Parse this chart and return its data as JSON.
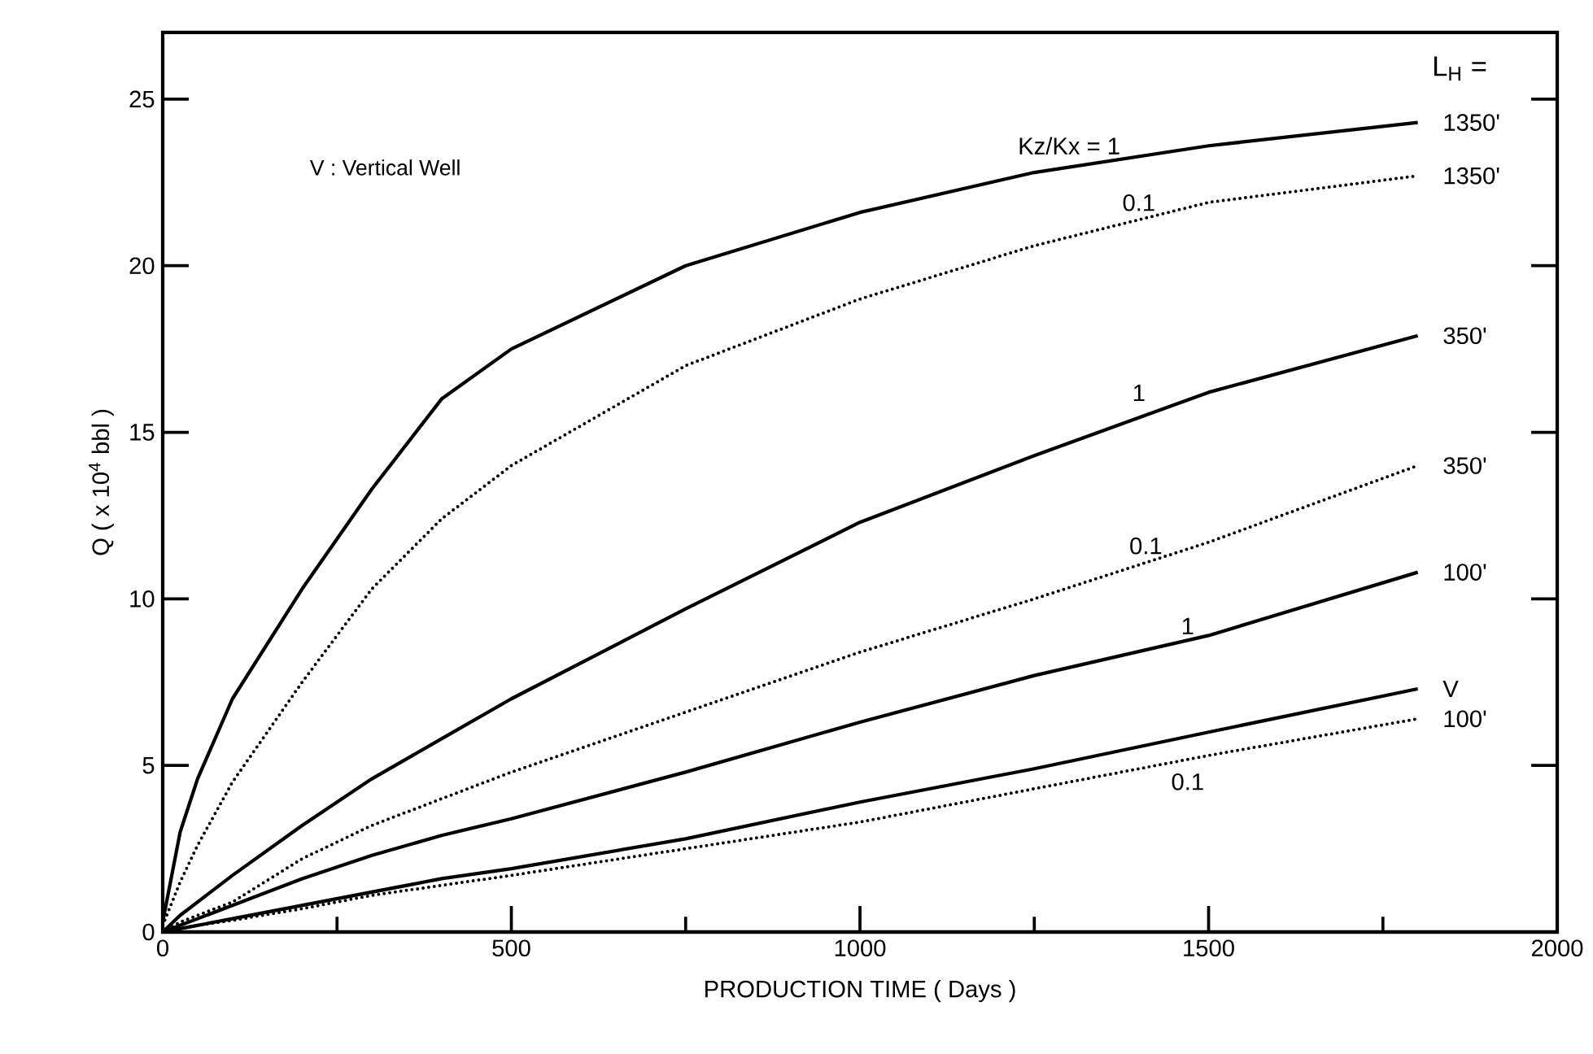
{
  "chart_data": {
    "type": "line",
    "xlabel": "PRODUCTION TIME  ( Days )",
    "ylabel": "Q ( x 10$^{4}$ bbl )",
    "x": [
      0,
      25,
      50,
      100,
      200,
      300,
      400,
      500,
      750,
      1000,
      1250,
      1500,
      1800
    ],
    "series": [
      {
        "name": "1350'",
        "color": "#000000",
        "line_style": "solid",
        "values": [
          0.3,
          3.0,
          4.6,
          7.0,
          10.3,
          13.3,
          16.0,
          17.5,
          20.0,
          21.6,
          22.8,
          23.6,
          24.3
        ]
      },
      {
        "name": "1350'",
        "color": "#000000",
        "line_style": "dotted",
        "values": [
          0.2,
          1.5,
          2.6,
          4.5,
          7.5,
          10.3,
          12.4,
          14.0,
          17.0,
          19.0,
          20.6,
          21.9,
          22.7
        ]
      },
      {
        "name": "350'",
        "color": "#000000",
        "line_style": "solid",
        "values": [
          0,
          0.5,
          0.9,
          1.7,
          3.2,
          4.6,
          5.8,
          7.0,
          9.7,
          12.3,
          14.3,
          16.2,
          17.9
        ]
      },
      {
        "name": "350'",
        "color": "#000000",
        "line_style": "dotted",
        "values": [
          0,
          0.3,
          0.5,
          0.9,
          2.2,
          3.2,
          4.0,
          4.8,
          6.6,
          8.4,
          10.0,
          11.7,
          14.0
        ]
      },
      {
        "name": "100'",
        "color": "#000000",
        "line_style": "solid",
        "values": [
          0,
          0.2,
          0.4,
          0.8,
          1.6,
          2.3,
          2.9,
          3.4,
          4.8,
          6.3,
          7.7,
          8.9,
          10.8
        ]
      },
      {
        "name": "100'",
        "color": "#000000",
        "line_style": "dotted",
        "values": [
          0,
          0.1,
          0.2,
          0.35,
          0.7,
          1.1,
          1.4,
          1.7,
          2.5,
          3.3,
          4.3,
          5.3,
          6.4
        ]
      },
      {
        "name": "V",
        "color": "#000000",
        "line_style": "solid",
        "values": [
          0,
          0.1,
          0.2,
          0.4,
          0.8,
          1.2,
          1.6,
          1.9,
          2.8,
          3.9,
          4.9,
          6.0,
          7.3
        ]
      }
    ],
    "xlim": [
      0,
      2000
    ],
    "ylim": [
      0,
      27
    ],
    "xticks": [
      0,
      {
        "value": 250,
        "label": null
      },
      500,
      {
        "value": 750,
        "label": null
      },
      1000,
      {
        "value": 1250,
        "label": null
      },
      1500,
      {
        "value": 1750,
        "label": null
      },
      2000
    ],
    "yticks": [
      0,
      5,
      10,
      15,
      20,
      25
    ],
    "grid": false,
    "legend": false,
    "marker": "none",
    "annotations": [
      "V : Vertical Well",
      "L$_{H}$ =",
      {
        "text": "Kz/Kx  =  1",
        "x": 1300,
        "y": 23.0
      },
      {
        "text": "0.1",
        "x": 1400,
        "y": 21.3
      },
      {
        "text": "1",
        "x": 1400,
        "y": 15.6
      },
      {
        "text": "0.1",
        "x": 1410,
        "y": 11.0
      },
      {
        "text": "1",
        "x": 1470,
        "y": 8.6
      },
      {
        "text": "0.1",
        "x": 1470,
        "y": 5.1
      }
    ]
  }
}
